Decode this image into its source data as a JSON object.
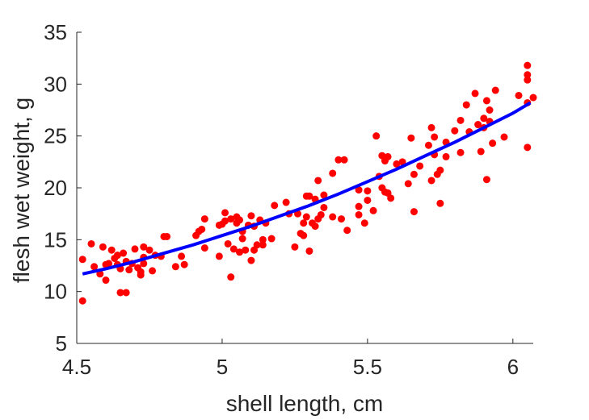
{
  "chart_data": {
    "type": "scatter",
    "xlabel": "shell length, cm",
    "ylabel": "flesh wet weight, g",
    "xlim": [
      4.5,
      6.07
    ],
    "ylim": [
      5,
      35
    ],
    "xticks": [
      4.5,
      5,
      5.5,
      6
    ],
    "xtick_labels": [
      "4.5",
      "5",
      "5.5",
      "6"
    ],
    "yticks": [
      5,
      10,
      15,
      20,
      25,
      30,
      35
    ],
    "ytick_labels": [
      "5",
      "10",
      "15",
      "20",
      "25",
      "30",
      "35"
    ],
    "grid": false,
    "colors": {
      "points": "#ff0000",
      "fit": "#0000ff",
      "axes": "#262626"
    },
    "points": [
      [
        4.52,
        9.1
      ],
      [
        4.52,
        13.1
      ],
      [
        4.55,
        14.6
      ],
      [
        4.56,
        12.4
      ],
      [
        4.58,
        11.7
      ],
      [
        4.59,
        14.3
      ],
      [
        4.6,
        12.6
      ],
      [
        4.6,
        11.1
      ],
      [
        4.61,
        12.7
      ],
      [
        4.62,
        14.0
      ],
      [
        4.63,
        13.2
      ],
      [
        4.64,
        12.6
      ],
      [
        4.64,
        13.5
      ],
      [
        4.65,
        12.2
      ],
      [
        4.65,
        9.9
      ],
      [
        4.66,
        13.7
      ],
      [
        4.67,
        12.9
      ],
      [
        4.67,
        9.9
      ],
      [
        4.68,
        12.1
      ],
      [
        4.69,
        12.7
      ],
      [
        4.7,
        14.1
      ],
      [
        4.71,
        12.3
      ],
      [
        4.72,
        11.9
      ],
      [
        4.72,
        11.6
      ],
      [
        4.73,
        12.7
      ],
      [
        4.73,
        13.3
      ],
      [
        4.73,
        14.3
      ],
      [
        4.75,
        14.0
      ],
      [
        4.76,
        12.0
      ],
      [
        4.77,
        13.5
      ],
      [
        4.79,
        13.4
      ],
      [
        4.8,
        15.3
      ],
      [
        4.81,
        15.3
      ],
      [
        4.84,
        12.4
      ],
      [
        4.86,
        13.4
      ],
      [
        4.87,
        12.6
      ],
      [
        4.91,
        15.4
      ],
      [
        4.92,
        15.8
      ],
      [
        4.93,
        16.0
      ],
      [
        4.94,
        17.0
      ],
      [
        4.94,
        14.2
      ],
      [
        4.99,
        13.4
      ],
      [
        4.99,
        16.4
      ],
      [
        5.0,
        16.5
      ],
      [
        5.01,
        17.6
      ],
      [
        5.01,
        16.8
      ],
      [
        5.02,
        14.6
      ],
      [
        5.03,
        17.0
      ],
      [
        5.03,
        11.4
      ],
      [
        5.04,
        14.1
      ],
      [
        5.05,
        17.2
      ],
      [
        5.05,
        16.6
      ],
      [
        5.06,
        13.8
      ],
      [
        5.06,
        16.9
      ],
      [
        5.07,
        15.8
      ],
      [
        5.07,
        15.1
      ],
      [
        5.08,
        14.0
      ],
      [
        5.09,
        16.4
      ],
      [
        5.1,
        17.3
      ],
      [
        5.1,
        13.0
      ],
      [
        5.11,
        16.3
      ],
      [
        5.11,
        14.0
      ],
      [
        5.12,
        14.5
      ],
      [
        5.13,
        16.9
      ],
      [
        5.14,
        15.0
      ],
      [
        5.14,
        14.5
      ],
      [
        5.15,
        16.6
      ],
      [
        5.17,
        15.1
      ],
      [
        5.18,
        18.3
      ],
      [
        5.22,
        18.6
      ],
      [
        5.23,
        17.5
      ],
      [
        5.25,
        14.3
      ],
      [
        5.26,
        17.5
      ],
      [
        5.27,
        15.6
      ],
      [
        5.28,
        15.4
      ],
      [
        5.28,
        16.6
      ],
      [
        5.29,
        19.2
      ],
      [
        5.29,
        17.2
      ],
      [
        5.3,
        19.2
      ],
      [
        5.3,
        13.9
      ],
      [
        5.31,
        16.6
      ],
      [
        5.32,
        16.3
      ],
      [
        5.32,
        18.9
      ],
      [
        5.33,
        20.7
      ],
      [
        5.33,
        17.0
      ],
      [
        5.34,
        17.4
      ],
      [
        5.35,
        19.3
      ],
      [
        5.35,
        18.1
      ],
      [
        5.38,
        21.4
      ],
      [
        5.38,
        17.2
      ],
      [
        5.4,
        22.7
      ],
      [
        5.41,
        17.0
      ],
      [
        5.42,
        22.7
      ],
      [
        5.43,
        15.9
      ],
      [
        5.47,
        19.8
      ],
      [
        5.47,
        18.2
      ],
      [
        5.47,
        17.4
      ],
      [
        5.49,
        16.6
      ],
      [
        5.5,
        18.8
      ],
      [
        5.5,
        19.7
      ],
      [
        5.52,
        17.8
      ],
      [
        5.53,
        25.0
      ],
      [
        5.54,
        21.1
      ],
      [
        5.55,
        23.1
      ],
      [
        5.55,
        20.0
      ],
      [
        5.56,
        22.6
      ],
      [
        5.56,
        19.6
      ],
      [
        5.57,
        19.5
      ],
      [
        5.57,
        23.0
      ],
      [
        5.58,
        19.0
      ],
      [
        5.6,
        22.3
      ],
      [
        5.62,
        22.5
      ],
      [
        5.64,
        20.4
      ],
      [
        5.65,
        24.8
      ],
      [
        5.66,
        21.3
      ],
      [
        5.66,
        17.7
      ],
      [
        5.68,
        22.1
      ],
      [
        5.71,
        24.1
      ],
      [
        5.72,
        20.7
      ],
      [
        5.72,
        25.8
      ],
      [
        5.73,
        24.9
      ],
      [
        5.73,
        23.2
      ],
      [
        5.74,
        21.3
      ],
      [
        5.75,
        21.7
      ],
      [
        5.75,
        18.5
      ],
      [
        5.77,
        24.4
      ],
      [
        5.77,
        23.0
      ],
      [
        5.8,
        25.5
      ],
      [
        5.82,
        26.5
      ],
      [
        5.82,
        23.4
      ],
      [
        5.84,
        28.0
      ],
      [
        5.85,
        25.4
      ],
      [
        5.87,
        29.1
      ],
      [
        5.88,
        26.1
      ],
      [
        5.89,
        23.5
      ],
      [
        5.9,
        26.7
      ],
      [
        5.9,
        25.8
      ],
      [
        5.91,
        20.8
      ],
      [
        5.91,
        28.4
      ],
      [
        5.92,
        27.5
      ],
      [
        5.92,
        26.4
      ],
      [
        5.93,
        24.3
      ],
      [
        5.94,
        29.4
      ],
      [
        5.97,
        24.9
      ],
      [
        6.02,
        28.9
      ],
      [
        6.05,
        31.8
      ],
      [
        6.05,
        30.9
      ],
      [
        6.05,
        30.4
      ],
      [
        6.05,
        28.2
      ],
      [
        6.05,
        23.9
      ],
      [
        6.07,
        28.7
      ]
    ],
    "fit_line": [
      [
        4.52,
        11.7
      ],
      [
        4.6,
        12.2
      ],
      [
        4.7,
        12.9
      ],
      [
        4.8,
        13.7
      ],
      [
        4.9,
        14.5
      ],
      [
        5.0,
        15.4
      ],
      [
        5.1,
        16.3
      ],
      [
        5.2,
        17.3
      ],
      [
        5.3,
        18.3
      ],
      [
        5.4,
        19.4
      ],
      [
        5.5,
        20.6
      ],
      [
        5.6,
        21.8
      ],
      [
        5.7,
        23.1
      ],
      [
        5.8,
        24.4
      ],
      [
        5.9,
        25.8
      ],
      [
        6.0,
        27.2
      ],
      [
        6.06,
        28.2
      ]
    ]
  }
}
